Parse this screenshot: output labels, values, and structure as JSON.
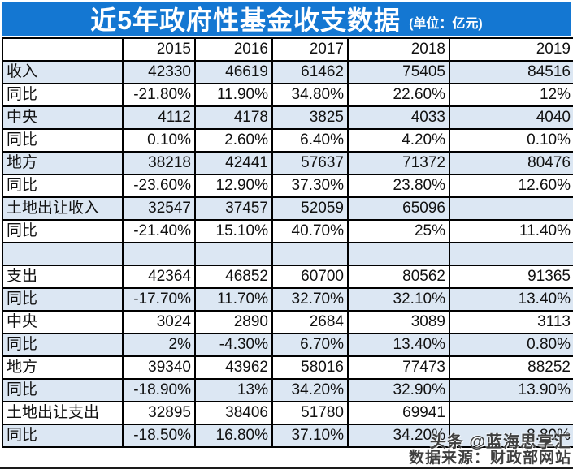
{
  "title": {
    "main": "近5年政府性基金收支数据",
    "unit": "(单位：亿元)"
  },
  "chart_data": {
    "type": "table",
    "title": "近5年政府性基金收支数据",
    "unit": "亿元",
    "columns": [
      "",
      "2015",
      "2016",
      "2017",
      "2018",
      "2019"
    ],
    "rows": [
      {
        "label": "收入",
        "values": [
          "42330",
          "46619",
          "61462",
          "75405",
          "84516"
        ],
        "shaded": true
      },
      {
        "label": "同比",
        "values": [
          "-21.80%",
          "11.90%",
          "34.80%",
          "22.60%",
          "12%"
        ],
        "shaded": false
      },
      {
        "label": "中央",
        "values": [
          "4112",
          "4178",
          "3825",
          "4033",
          "4040"
        ],
        "shaded": true
      },
      {
        "label": "同比",
        "values": [
          "0.10%",
          "2.60%",
          "6.40%",
          "4.20%",
          "0.10%"
        ],
        "shaded": false
      },
      {
        "label": "地方",
        "values": [
          "38218",
          "42441",
          "57637",
          "71372",
          "80476"
        ],
        "shaded": true
      },
      {
        "label": "同比",
        "values": [
          "-23.60%",
          "12.90%",
          "37.30%",
          "23.80%",
          "12.60%"
        ],
        "shaded": false
      },
      {
        "label": "土地出让收入",
        "values": [
          "32547",
          "37457",
          "52059",
          "65096",
          ""
        ],
        "shaded": true
      },
      {
        "label": "同比",
        "values": [
          "-21.40%",
          "15.10%",
          "40.70%",
          "25%",
          "11.40%"
        ],
        "shaded": false
      },
      {
        "label": "",
        "values": [
          "",
          "",
          "",
          "",
          ""
        ],
        "shaded": true
      },
      {
        "label": "支出",
        "values": [
          "42364",
          "46852",
          "60700",
          "80562",
          "91365"
        ],
        "shaded": false
      },
      {
        "label": "同比",
        "values": [
          "-17.70%",
          "11.70%",
          "32.70%",
          "32.10%",
          "13.40%"
        ],
        "shaded": true
      },
      {
        "label": "中央",
        "values": [
          "3024",
          "2890",
          "2684",
          "3089",
          "3113"
        ],
        "shaded": false
      },
      {
        "label": "同比",
        "values": [
          "2%",
          "-4.30%",
          "6.70%",
          "13.40%",
          "0.80%"
        ],
        "shaded": true
      },
      {
        "label": "地方",
        "values": [
          "39340",
          "43962",
          "58016",
          "77473",
          "88252"
        ],
        "shaded": false
      },
      {
        "label": "同比",
        "values": [
          "-18.90%",
          "13%",
          "34.20%",
          "32.90%",
          "13.90%"
        ],
        "shaded": true
      },
      {
        "label": "土地出让支出",
        "values": [
          "32895",
          "38406",
          "51780",
          "69941",
          ""
        ],
        "shaded": false
      },
      {
        "label": "同比",
        "values": [
          "-18.50%",
          "16.80%",
          "37.10%",
          "34.20%",
          "8.80%"
        ],
        "shaded": true
      }
    ]
  },
  "watermark": {
    "line1": "头条 @蓝海思享汇",
    "line2": "数据来源：财政部网站"
  },
  "colors": {
    "header_blue": "#1477d2",
    "row_shade": "#dce7f3",
    "border": "#000000",
    "watermark_gray": "#3f3f3f"
  }
}
